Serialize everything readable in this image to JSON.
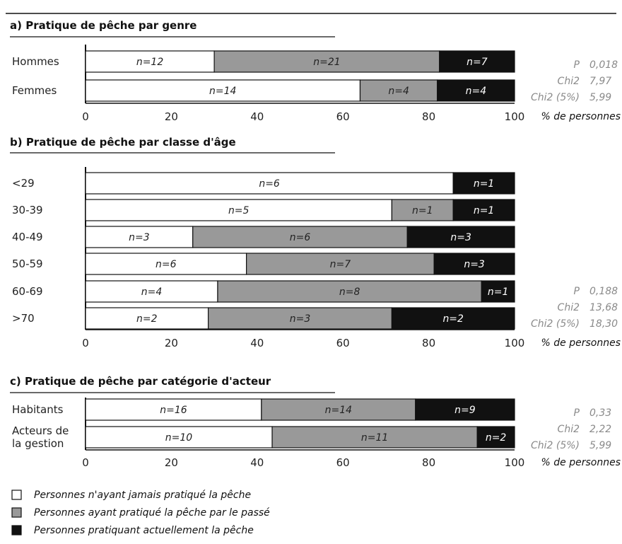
{
  "colors": {
    "never": "#ffffff",
    "past": "#999999",
    "current": "#111111",
    "bar_stroke": "#111111",
    "stat_text": "#8a8a8a"
  },
  "legend": [
    {
      "key": "never",
      "label": "Personnes n'ayant jamais pratiqué la pêche"
    },
    {
      "key": "past",
      "label": "Personnes ayant pratiqué la pêche par le passé"
    },
    {
      "key": "current",
      "label": "Personnes pratiquant actuellement la pêche"
    }
  ],
  "chart_data": [
    {
      "type": "bar",
      "orientation": "horizontal",
      "stacked": true,
      "title": "a) Pratique de pêche par genre",
      "xlabel": "% de personnes",
      "xlim": [
        0,
        100
      ],
      "xticks": [
        "0",
        "20",
        "40",
        "60",
        "80",
        "100"
      ],
      "categories": [
        [
          "Hommes"
        ],
        [
          "Femmes"
        ]
      ],
      "series": [
        {
          "name": "Personnes n'ayant jamais pratiqué la pêche",
          "key": "never",
          "values": [
            30,
            64
          ],
          "labels": [
            "n=12",
            "n=14"
          ]
        },
        {
          "name": "Personnes ayant pratiqué la pêche par le passé",
          "key": "past",
          "values": [
            52.5,
            18
          ],
          "labels": [
            "n=21",
            "n=4"
          ]
        },
        {
          "name": "Personnes pratiquant actuellement la pêche",
          "key": "current",
          "values": [
            17.5,
            18
          ],
          "labels": [
            "n=7",
            "n=4"
          ]
        }
      ],
      "stats": [
        {
          "label": "P",
          "value": "0,018"
        },
        {
          "label": "Chi2",
          "value": "7,97"
        },
        {
          "label": "Chi2 (5%)",
          "value": "5,99"
        }
      ]
    },
    {
      "type": "bar",
      "orientation": "horizontal",
      "stacked": true,
      "title": "b) Pratique de pêche par classe d'âge",
      "xlabel": "% de personnes",
      "xlim": [
        0,
        100
      ],
      "xticks": [
        "0",
        "20",
        "40",
        "60",
        "80",
        "100"
      ],
      "categories": [
        [
          "<29"
        ],
        [
          "30-39"
        ],
        [
          "40-49"
        ],
        [
          "50-59"
        ],
        [
          "60-69"
        ],
        [
          ">70"
        ]
      ],
      "series": [
        {
          "name": "Personnes n'ayant jamais pratiqué la pêche",
          "key": "never",
          "values": [
            85.7,
            71.4,
            25,
            37.5,
            30.8,
            28.6
          ],
          "labels": [
            "n=6",
            "n=5",
            "n=3",
            "n=6",
            "n=4",
            "n=2"
          ]
        },
        {
          "name": "Personnes ayant pratiqué la pêche par le passé",
          "key": "past",
          "values": [
            0,
            14.3,
            50,
            43.75,
            61.5,
            42.8
          ],
          "labels": [
            "",
            "n=1",
            "n=6",
            "n=7",
            "n=8",
            "n=3"
          ]
        },
        {
          "name": "Personnes pratiquant actuellement la pêche",
          "key": "current",
          "values": [
            14.3,
            14.3,
            25,
            18.75,
            7.7,
            28.6
          ],
          "labels": [
            "n=1",
            "n=1",
            "n=3",
            "n=3",
            "n=1",
            "n=2"
          ]
        }
      ],
      "stats": [
        {
          "label": "P",
          "value": "0,188"
        },
        {
          "label": "Chi2",
          "value": "13,68"
        },
        {
          "label": "Chi2 (5%)",
          "value": "18,30"
        }
      ]
    },
    {
      "type": "bar",
      "orientation": "horizontal",
      "stacked": true,
      "title": "c) Pratique de pêche par catégorie d'acteur",
      "xlabel": "% de personnes",
      "xlim": [
        0,
        100
      ],
      "xticks": [
        "0",
        "20",
        "40",
        "60",
        "80",
        "100"
      ],
      "categories": [
        [
          "Habitants"
        ],
        [
          "Acteurs de",
          "la gestion"
        ]
      ],
      "series": [
        {
          "name": "Personnes n'ayant jamais pratiqué la pêche",
          "key": "never",
          "values": [
            41,
            43.5
          ],
          "labels": [
            "n=16",
            "n=10"
          ]
        },
        {
          "name": "Personnes ayant pratiqué la pêche par le passé",
          "key": "past",
          "values": [
            35.9,
            47.8
          ],
          "labels": [
            "n=14",
            "n=11"
          ]
        },
        {
          "name": "Personnes pratiquant actuellement la pêche",
          "key": "current",
          "values": [
            23.1,
            8.7
          ],
          "labels": [
            "n=9",
            "n=2"
          ]
        }
      ],
      "stats": [
        {
          "label": "P",
          "value": "0,33"
        },
        {
          "label": "Chi2",
          "value": "2,22"
        },
        {
          "label": "Chi2 (5%)",
          "value": "5,99"
        }
      ]
    }
  ]
}
